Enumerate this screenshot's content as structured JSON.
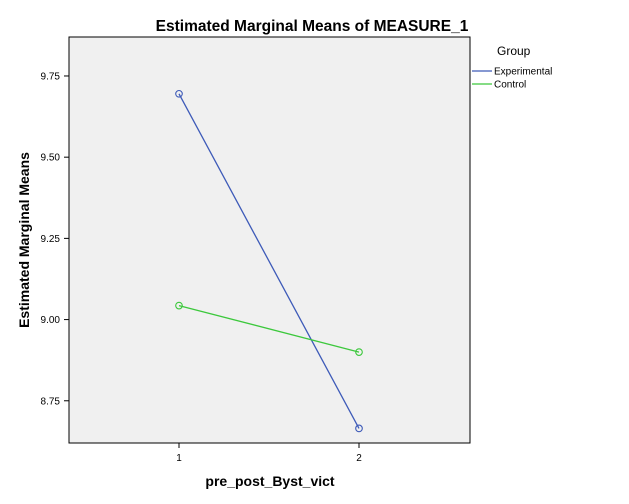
{
  "chart_data": {
    "type": "line",
    "title": "Estimated Marginal Means of MEASURE_1",
    "xlabel": "pre_post_Byst_vict",
    "ylabel": "Estimated Marginal Means",
    "categories": [
      "1",
      "2"
    ],
    "ylim": [
      8.62,
      9.87
    ],
    "yticks": [
      "9.75",
      "9.50",
      "9.25",
      "9.00",
      "8.75"
    ],
    "legend_title": "Group",
    "legend_position": "right",
    "grid": false,
    "series": [
      {
        "name": "Experimental",
        "color": "#3d5ab8",
        "values": [
          9.695,
          8.665
        ]
      },
      {
        "name": "Control",
        "color": "#3cc83c",
        "values": [
          9.043,
          8.9
        ]
      }
    ]
  },
  "colors": {
    "plot_background": "#f0f0f0",
    "axis": "#000000"
  }
}
